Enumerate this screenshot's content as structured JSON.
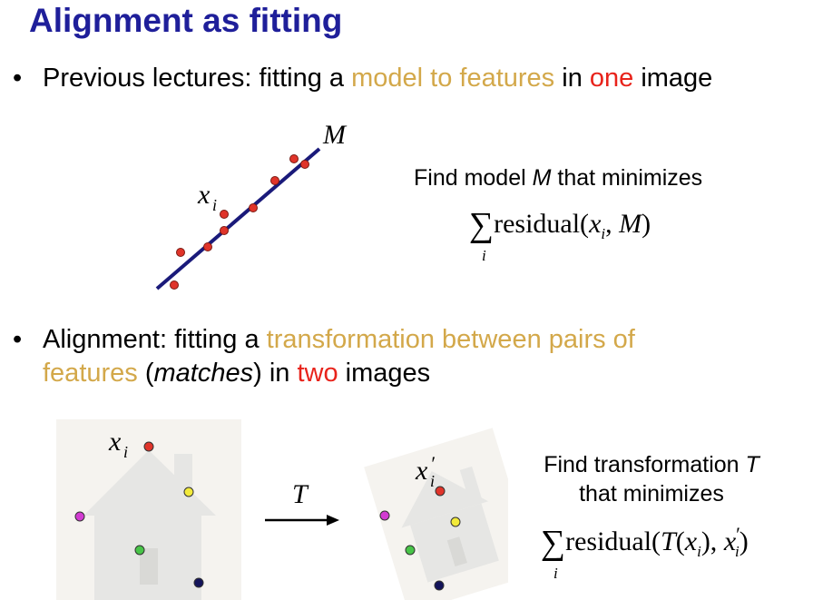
{
  "title": "Alignment as fitting",
  "bullet1": {
    "marker": "•",
    "prefix": "Previous lectures: fitting a ",
    "highlight1": "model to features",
    "mid": " in ",
    "highlight2": "one",
    "suffix": " image"
  },
  "figure1": {
    "line_label": "M",
    "point_label": "x",
    "point_label_sub": "i",
    "colors": {
      "line": "#1a1a7a",
      "points": "#e0342a"
    }
  },
  "find1": {
    "prefix": "Find model ",
    "var": "M",
    "suffix": " that minimizes"
  },
  "formula1": {
    "sigma": "∑",
    "sum_index": "i",
    "text": "residual(",
    "x": "x",
    "sub": "i",
    "sep": ", ",
    "M": "M",
    "close": ")"
  },
  "bullet2": {
    "marker": "•",
    "prefix": "Alignment: fitting a ",
    "highlight1": "transformation between pairs of",
    "highlight1b": "features",
    "open": " (",
    "matches": "matches",
    "close": ") in ",
    "highlight2": "two",
    "suffix": " images"
  },
  "figure2": {
    "left_label": "x",
    "left_label_sub": "i",
    "arrow_label": "T",
    "right_label": "x",
    "right_label_prime": "′",
    "right_label_sub": "i",
    "colors": {
      "red": "#e0342a",
      "yellow": "#f2ea3a",
      "magenta": "#d23bd2",
      "green": "#48c448",
      "navy": "#14145a",
      "house": "#e6e6e4",
      "panel": "#f5f3ef"
    }
  },
  "find2": {
    "line1_prefix": "Find transformation ",
    "line1_var": "T",
    "line2": "that minimizes"
  },
  "formula2": {
    "sigma": "∑",
    "sum_index": "i",
    "text": "residual(",
    "T": "T",
    "open": "(",
    "x": "x",
    "sub": "i",
    "mid": "), ",
    "x2": "x",
    "prime": "′",
    "sub2": "i",
    "close": ")"
  },
  "colors": {
    "title": "#1f1f9a",
    "gold": "#d3a84a",
    "red": "#e8231b"
  }
}
